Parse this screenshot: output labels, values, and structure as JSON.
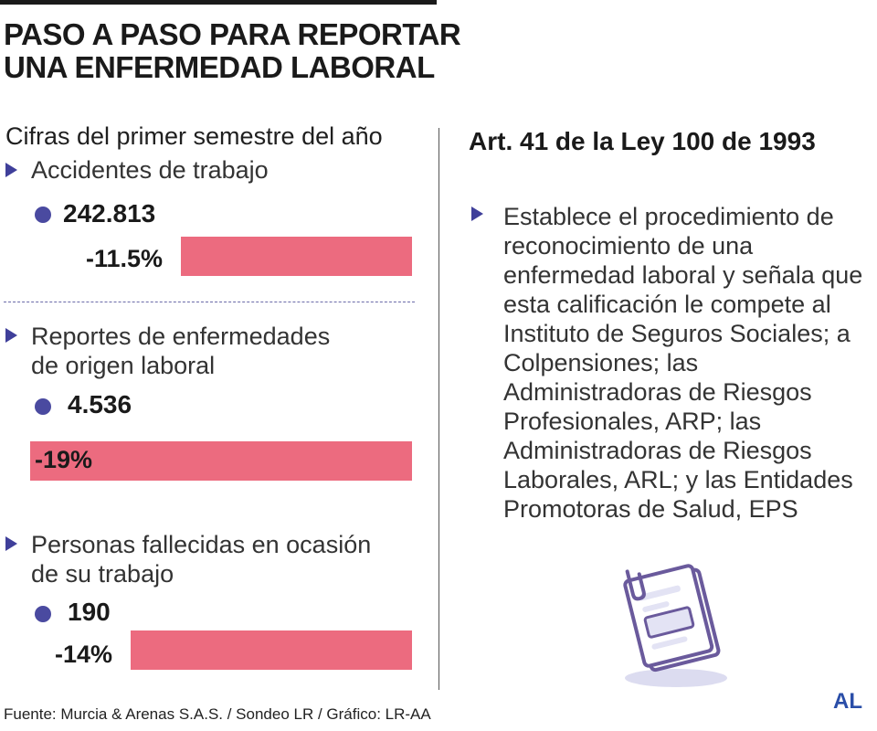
{
  "title_line1": "PASO A PASO PARA REPORTAR",
  "title_line2": "UNA ENFERMEDAD LABORAL",
  "subtitle": "Cifras del primer semestre del año",
  "items": [
    {
      "label_line1": "Accidentes de trabajo",
      "label_line2": "",
      "value": "242.813",
      "change": "-11.5%"
    },
    {
      "label_line1": "Reportes de enfermedades",
      "label_line2": "de origen laboral",
      "value": "4.536",
      "change": "-19%"
    },
    {
      "label_line1": "Personas fallecidas en ocasión",
      "label_line2": "de su trabajo",
      "value": "190",
      "change": "-14%"
    }
  ],
  "article": {
    "title": "Art. 41 de la Ley 100 de 1993",
    "text": "Establece el procedimiento de reconocimiento de una enfermedad laboral y señala que esta calificación le compete al Instituto de Seguros Sociales; a Colpensiones; las Administradoras de Riesgos Profesionales, ARP; las Administradoras de Riesgos Laborales, ARL; y las Entidades Promotoras de Salud, EPS"
  },
  "source": "Fuente: Murcia & Arenas S.A.S. / Sondeo LR / Gráfico: LR-AA",
  "logo": "AL",
  "icon": "document-clip-icon",
  "colors": {
    "bar": "#ec6b7f",
    "accent": "#4a4aa0",
    "logo": "#2a4ea8"
  },
  "chart_data": {
    "type": "bar",
    "categories": [
      "Accidentes de trabajo",
      "Reportes de enfermedades de origen laboral",
      "Personas fallecidas en ocasión de su trabajo"
    ],
    "series": [
      {
        "values": [
          242813,
          4536,
          190
        ]
      },
      {
        "values": [
          -11.5,
          -19,
          -14
        ]
      }
    ]
  }
}
